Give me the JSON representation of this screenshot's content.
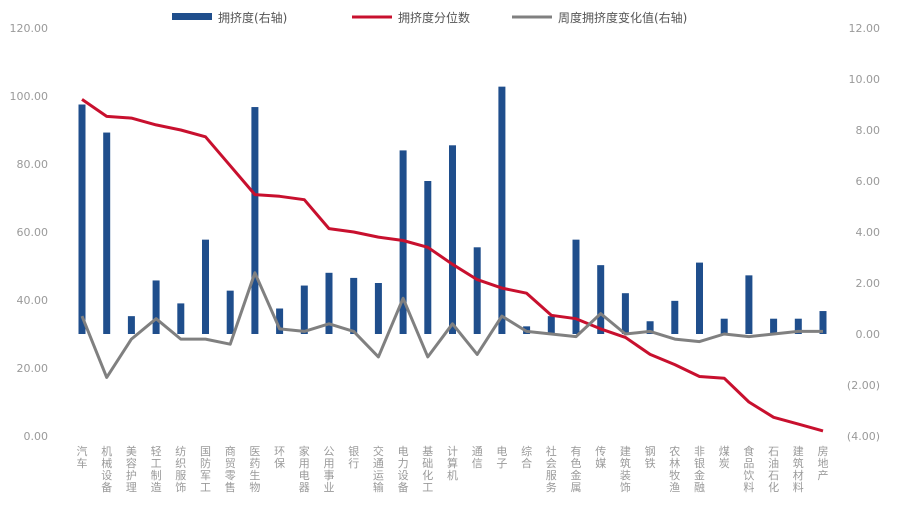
{
  "chart_data": {
    "type": "bar",
    "title": "",
    "legend": {
      "placement": "top",
      "entries": [
        "拥挤度(右轴)",
        "拥挤度分位数",
        "周度拥挤度变化值(右轴)"
      ]
    },
    "left_axis": {
      "ylim": [
        0,
        120
      ],
      "ticks": [
        "120.00",
        "100.00",
        "80.00",
        "60.00",
        "40.00",
        "20.00",
        "0.00"
      ]
    },
    "right_axis": {
      "ylim": [
        -4,
        12
      ],
      "ticks": [
        "12.00",
        "10.00",
        "8.00",
        "6.00",
        "4.00",
        "2.00",
        "0.00",
        "(2.00)",
        "(4.00)"
      ]
    },
    "grid": false,
    "categories": [
      "汽车",
      "机械设备",
      "美容护理",
      "轻工制造",
      "纺织服饰",
      "国防军工",
      "商贸零售",
      "医药生物",
      "环保",
      "家用电器",
      "公用事业",
      "银行",
      "交通运输",
      "电力设备",
      "基础化工",
      "计算机",
      "通信",
      "电子",
      "综合",
      "社会服务",
      "有色金属",
      "传媒",
      "建筑装饰",
      "钢铁",
      "农林牧渔",
      "非银金融",
      "煤炭",
      "食品饮料",
      "石油石化",
      "建筑材料",
      "房地产"
    ],
    "series": [
      {
        "name": "拥挤度(右轴)",
        "kind": "bar",
        "axis": "right",
        "color": "#1f4e8c",
        "values": [
          9.0,
          7.9,
          0.7,
          2.1,
          1.2,
          3.7,
          1.7,
          8.9,
          1.0,
          1.9,
          2.4,
          2.2,
          2.0,
          7.2,
          6.0,
          7.4,
          3.4,
          9.7,
          0.3,
          0.7,
          3.7,
          2.7,
          1.6,
          0.5,
          1.3,
          2.8,
          0.6,
          2.3,
          0.6,
          0.6,
          0.9
        ]
      },
      {
        "name": "拥挤度分位数",
        "kind": "line",
        "axis": "left",
        "color": "#c8102e",
        "values": [
          99.0,
          94.0,
          93.5,
          91.5,
          90.0,
          88.0,
          79.5,
          71.0,
          70.5,
          69.5,
          61.0,
          60.0,
          58.5,
          57.5,
          55.5,
          50.5,
          46.0,
          43.5,
          42.0,
          35.5,
          34.5,
          31.5,
          29.0,
          24.0,
          21.0,
          17.5,
          17.0,
          10.0,
          5.5,
          3.5,
          1.5
        ]
      },
      {
        "name": "周度拥挤度变化值(右轴)",
        "kind": "line",
        "axis": "right",
        "color": "#808080",
        "values": [
          0.7,
          -1.7,
          -0.2,
          0.6,
          -0.2,
          -0.2,
          -0.4,
          2.4,
          0.2,
          0.1,
          0.4,
          0.1,
          -0.9,
          1.4,
          -0.9,
          0.4,
          -0.8,
          0.7,
          0.1,
          0.0,
          -0.1,
          0.8,
          0.0,
          0.1,
          -0.2,
          -0.3,
          0.0,
          -0.1,
          0.0,
          0.1,
          0.1
        ]
      }
    ]
  }
}
